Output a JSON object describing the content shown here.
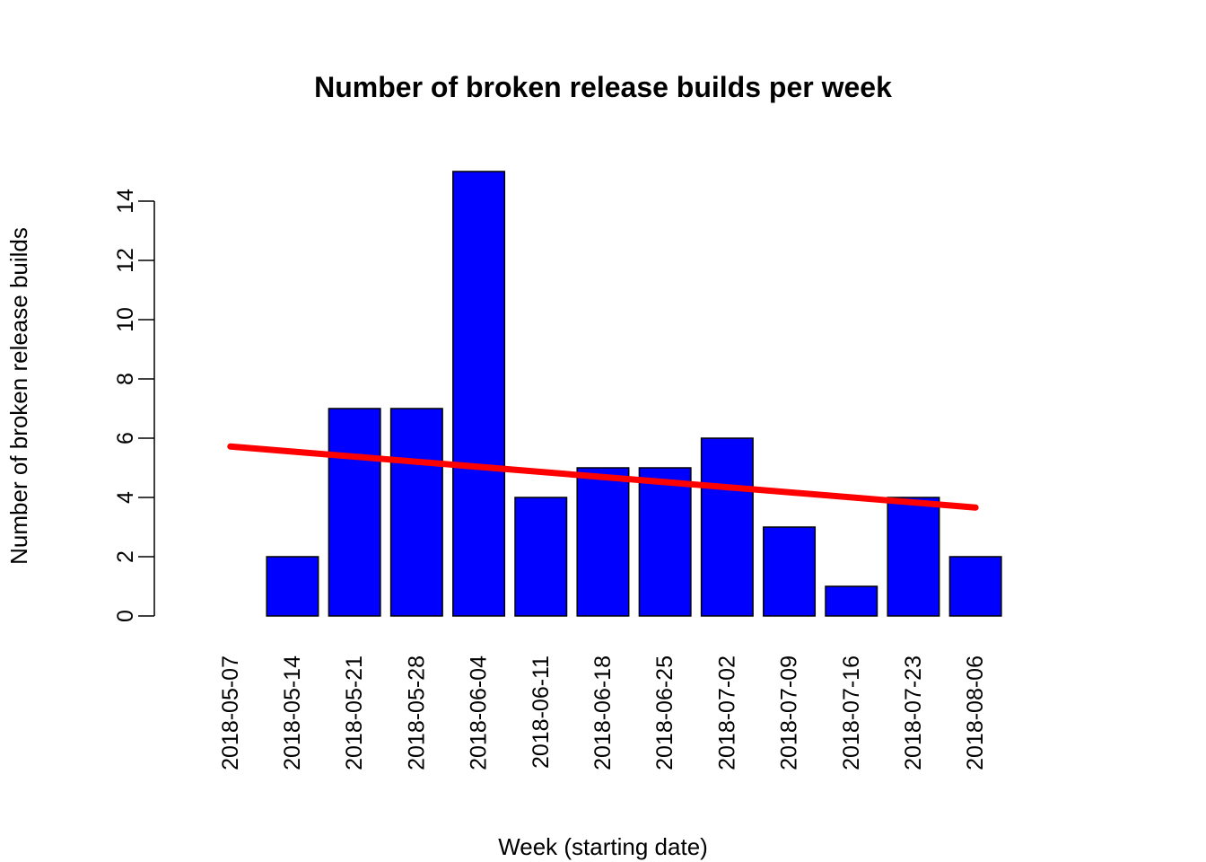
{
  "chart_data": {
    "type": "bar",
    "title": "Number of broken release builds per week",
    "xlabel": "Week (starting date)",
    "ylabel": "Number of broken release builds",
    "categories": [
      "2018-05-07",
      "2018-05-14",
      "2018-05-21",
      "2018-05-28",
      "2018-06-04",
      "2018-06-11",
      "2018-06-18",
      "2018-06-25",
      "2018-07-02",
      "2018-07-09",
      "2018-07-16",
      "2018-07-23",
      "2018-08-06"
    ],
    "values": [
      0,
      2,
      7,
      7,
      15,
      4,
      5,
      5,
      6,
      3,
      1,
      4,
      2
    ],
    "yticks": [
      0,
      2,
      4,
      6,
      8,
      10,
      12,
      14
    ],
    "ylim": [
      0,
      15
    ],
    "trend_line": {
      "start": 5.72,
      "end": 3.66
    },
    "grid": false,
    "colors": {
      "bar_fill": "#0000ff",
      "bar_stroke": "#000000",
      "trend": "#ff0000"
    }
  }
}
